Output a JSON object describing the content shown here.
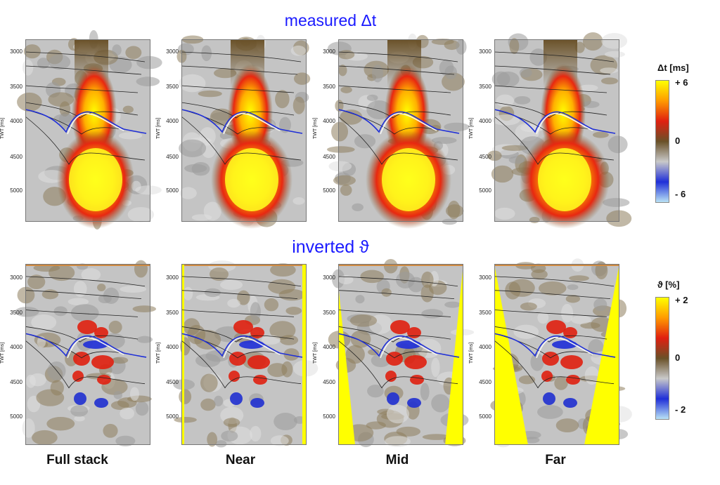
{
  "chart_data": [
    {
      "type": "heatmap",
      "title": "measured Δt",
      "ylabel": "TWT [ms]",
      "yticks": [
        "3000",
        "3500",
        "4000",
        "4500",
        "5000"
      ],
      "panels": [
        "Full stack",
        "Near",
        "Mid",
        "Far"
      ],
      "colorbar": {
        "title": "Δt [ms]",
        "ticks": [
          "+ 6",
          "0",
          "- 6"
        ],
        "range": [
          -6,
          6
        ]
      },
      "colors": [
        "#b9e2f5",
        "#1f2fd8",
        "#c9c9c9",
        "#6a5128",
        "#e02010",
        "#ff9a00",
        "#ffff00"
      ]
    },
    {
      "type": "heatmap",
      "title": "inverted ϑ",
      "ylabel": "TWT [ms]",
      "yticks": [
        "3000",
        "3500",
        "4000",
        "4500",
        "5000"
      ],
      "panels": [
        "Full stack",
        "Near",
        "Mid",
        "Far"
      ],
      "colorbar": {
        "title": "ϑ [%]",
        "ticks": [
          "+ 2",
          "0",
          "- 2"
        ],
        "range": [
          -2,
          2
        ]
      },
      "colors": [
        "#b9e2f5",
        "#1f2fd8",
        "#c9c9c9",
        "#6a5128",
        "#e02010",
        "#ff9a00",
        "#ffff00"
      ]
    }
  ]
}
